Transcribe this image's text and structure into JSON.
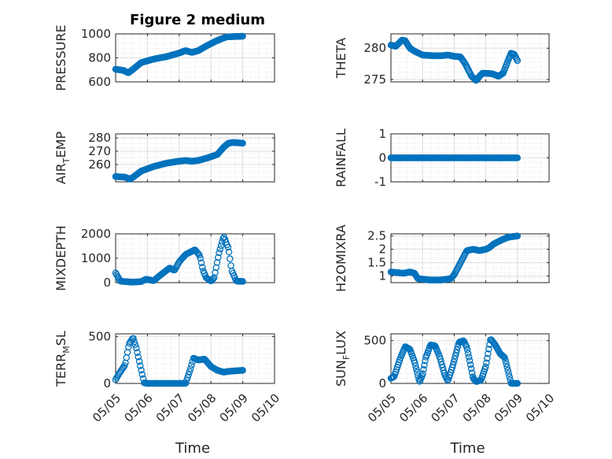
{
  "figure": {
    "title": "Figure 2 medium"
  },
  "colors": {
    "marker": "#0072BD",
    "axis": "#262626",
    "grid": "#DFDFDF"
  },
  "chart_data": [
    {
      "type": "scatter",
      "title": "Figure 2 medium",
      "ylabel": "PRESSURE",
      "ylim": [
        600,
        1000
      ],
      "yticks": [
        600,
        800,
        1000
      ],
      "ytick_labels": [
        "600",
        "800",
        "1000"
      ],
      "xlim": [
        0,
        5
      ],
      "xticks": [
        0,
        1,
        2,
        3,
        4,
        5
      ],
      "xtick_labels": [],
      "xlabel": "",
      "grid": true,
      "x_domain": [
        0,
        4
      ],
      "n_points": 160,
      "y": [
        [
          0,
          705
        ],
        [
          0.25,
          695
        ],
        [
          0.4,
          675
        ],
        [
          0.55,
          705
        ],
        [
          0.8,
          760
        ],
        [
          1.2,
          790
        ],
        [
          1.6,
          810
        ],
        [
          2.0,
          840
        ],
        [
          2.2,
          860
        ],
        [
          2.4,
          845
        ],
        [
          2.6,
          860
        ],
        [
          2.9,
          905
        ],
        [
          3.2,
          945
        ],
        [
          3.5,
          975
        ],
        [
          4.0,
          980
        ]
      ]
    },
    {
      "type": "scatter",
      "title": "",
      "ylabel": "THETA",
      "ylim": [
        274.6,
        282.3
      ],
      "yticks": [
        275,
        280
      ],
      "ytick_labels": [
        "275",
        "280"
      ],
      "xlim": [
        0,
        5
      ],
      "xticks": [
        0,
        1,
        2,
        3,
        4,
        5
      ],
      "xtick_labels": [],
      "xlabel": "",
      "grid": true,
      "x_domain": [
        0,
        4
      ],
      "n_points": 160,
      "y": [
        [
          0,
          280.5
        ],
        [
          0.15,
          280.3
        ],
        [
          0.35,
          281.3
        ],
        [
          0.45,
          281.2
        ],
        [
          0.6,
          280.0
        ],
        [
          0.75,
          279.5
        ],
        [
          1.0,
          278.9
        ],
        [
          1.3,
          278.8
        ],
        [
          1.6,
          278.8
        ],
        [
          1.8,
          278.9
        ],
        [
          2.0,
          278.7
        ],
        [
          2.2,
          278.6
        ],
        [
          2.35,
          277.5
        ],
        [
          2.55,
          275.5
        ],
        [
          2.7,
          274.8
        ],
        [
          2.8,
          275.5
        ],
        [
          2.9,
          276.0
        ],
        [
          3.2,
          275.9
        ],
        [
          3.4,
          275.5
        ],
        [
          3.55,
          276.0
        ],
        [
          3.7,
          278.0
        ],
        [
          3.8,
          279.2
        ],
        [
          3.9,
          279.0
        ],
        [
          4.0,
          278.0
        ]
      ]
    },
    {
      "type": "scatter",
      "title": "",
      "ylabel": "AIR_TEMP",
      "ylabel_main": "AIR",
      "ylabel_sub": "T",
      "ylabel_rest": "EMP",
      "ylim": [
        247,
        283
      ],
      "yticks": [
        260,
        270,
        280
      ],
      "ytick_labels": [
        "260",
        "270",
        "280"
      ],
      "xlim": [
        0,
        5
      ],
      "xticks": [
        0,
        1,
        2,
        3,
        4,
        5
      ],
      "xtick_labels": [],
      "xlabel": "",
      "grid": true,
      "x_domain": [
        0,
        4
      ],
      "n_points": 160,
      "y": [
        [
          0,
          251
        ],
        [
          0.3,
          250.5
        ],
        [
          0.45,
          249
        ],
        [
          0.55,
          250.5
        ],
        [
          0.8,
          255
        ],
        [
          1.2,
          258.5
        ],
        [
          1.6,
          261
        ],
        [
          2.0,
          262.5
        ],
        [
          2.2,
          263
        ],
        [
          2.4,
          262.5
        ],
        [
          2.6,
          263
        ],
        [
          2.9,
          265
        ],
        [
          3.2,
          267.5
        ],
        [
          3.4,
          273
        ],
        [
          3.55,
          276
        ],
        [
          3.7,
          276.5
        ],
        [
          4.0,
          276
        ]
      ]
    },
    {
      "type": "scatter",
      "title": "",
      "ylabel": "RAINFALL",
      "ylim": [
        -1,
        1
      ],
      "yticks": [
        -1,
        0,
        1
      ],
      "ytick_labels": [
        "-1",
        "0",
        "1"
      ],
      "xlim": [
        0,
        5
      ],
      "xticks": [
        0,
        1,
        2,
        3,
        4,
        5
      ],
      "xtick_labels": [],
      "xlabel": "",
      "grid": true,
      "x_domain": [
        0,
        4
      ],
      "n_points": 160,
      "y": [
        [
          0,
          0
        ],
        [
          4,
          0
        ]
      ]
    },
    {
      "type": "scatter",
      "title": "",
      "ylabel": "MIXDEPTH",
      "ylim": [
        0,
        2000
      ],
      "yticks": [
        0,
        1000,
        2000
      ],
      "ytick_labels": [
        "0",
        "1000",
        "2000"
      ],
      "xlim": [
        0,
        5
      ],
      "xticks": [
        0,
        1,
        2,
        3,
        4,
        5
      ],
      "xtick_labels": [],
      "xlabel": "",
      "grid": true,
      "x_domain": [
        0,
        4
      ],
      "n_points": 130,
      "y": [
        [
          0,
          400
        ],
        [
          0.15,
          60
        ],
        [
          0.5,
          20
        ],
        [
          0.8,
          40
        ],
        [
          0.95,
          140
        ],
        [
          1.2,
          80
        ],
        [
          1.4,
          300
        ],
        [
          1.7,
          600
        ],
        [
          1.85,
          500
        ],
        [
          2.0,
          850
        ],
        [
          2.2,
          1150
        ],
        [
          2.5,
          1350
        ],
        [
          2.65,
          1100
        ],
        [
          2.75,
          500
        ],
        [
          2.85,
          200
        ],
        [
          3.0,
          60
        ],
        [
          3.1,
          200
        ],
        [
          3.25,
          1200
        ],
        [
          3.4,
          1900
        ],
        [
          3.55,
          1400
        ],
        [
          3.65,
          500
        ],
        [
          3.8,
          60
        ],
        [
          4.0,
          50
        ]
      ]
    },
    {
      "type": "scatter",
      "title": "",
      "ylabel": "H2OMIXRA",
      "ylim": [
        0.75,
        2.58
      ],
      "yticks": [
        1,
        1.5,
        2,
        2.5
      ],
      "ytick_labels": [
        "1",
        "1.5",
        "2",
        "2.5"
      ],
      "xlim": [
        0,
        5
      ],
      "xticks": [
        0,
        1,
        2,
        3,
        4,
        5
      ],
      "xtick_labels": [],
      "xlabel": "",
      "grid": true,
      "x_domain": [
        0,
        4
      ],
      "n_points": 160,
      "y": [
        [
          0,
          1.15
        ],
        [
          0.4,
          1.1
        ],
        [
          0.6,
          1.15
        ],
        [
          0.75,
          1.1
        ],
        [
          0.85,
          0.9
        ],
        [
          1.2,
          0.85
        ],
        [
          1.6,
          0.85
        ],
        [
          1.9,
          0.9
        ],
        [
          2.0,
          1.05
        ],
        [
          2.2,
          1.5
        ],
        [
          2.4,
          1.95
        ],
        [
          2.6,
          2.0
        ],
        [
          2.8,
          1.95
        ],
        [
          3.0,
          2.0
        ],
        [
          3.1,
          2.05
        ],
        [
          3.25,
          2.2
        ],
        [
          3.5,
          2.35
        ],
        [
          3.7,
          2.45
        ],
        [
          4.0,
          2.5
        ]
      ]
    },
    {
      "type": "scatter",
      "title": "",
      "ylabel": "TERR_MSL",
      "ylabel_main": "TERR",
      "ylabel_sub": "M",
      "ylabel_rest": "SL",
      "ylim": [
        0,
        530
      ],
      "yticks": [
        0,
        500
      ],
      "ytick_labels": [
        "0",
        "500"
      ],
      "xlim": [
        0,
        5
      ],
      "xticks": [
        0,
        1,
        2,
        3,
        4,
        5
      ],
      "xtick_labels": [
        "05/05",
        "05/06",
        "05/07",
        "05/08",
        "05/09",
        "05/10"
      ],
      "xlabel": "Time",
      "grid": true,
      "x_domain": [
        0,
        4
      ],
      "n_points": 130,
      "y": [
        [
          0,
          40
        ],
        [
          0.1,
          100
        ],
        [
          0.3,
          200
        ],
        [
          0.42,
          420
        ],
        [
          0.55,
          490
        ],
        [
          0.65,
          380
        ],
        [
          0.8,
          150
        ],
        [
          0.9,
          5
        ],
        [
          1.0,
          0
        ],
        [
          1.5,
          0
        ],
        [
          2.0,
          0
        ],
        [
          2.2,
          0
        ],
        [
          2.35,
          150
        ],
        [
          2.45,
          270
        ],
        [
          2.6,
          250
        ],
        [
          2.8,
          260
        ],
        [
          3.0,
          180
        ],
        [
          3.2,
          140
        ],
        [
          3.4,
          120
        ],
        [
          3.6,
          130
        ],
        [
          4.0,
          140
        ]
      ]
    },
    {
      "type": "scatter",
      "title": "",
      "ylabel": "SUN_FLUX",
      "ylabel_main": "SUN",
      "ylabel_sub": "F",
      "ylabel_rest": "LUX",
      "ylim": [
        0,
        580
      ],
      "yticks": [
        0,
        500
      ],
      "ytick_labels": [
        "0",
        "500"
      ],
      "xlim": [
        0,
        5
      ],
      "xticks": [
        0,
        1,
        2,
        3,
        4,
        5
      ],
      "xtick_labels": [
        "05/05",
        "05/06",
        "05/07",
        "05/08",
        "05/09",
        "05/10"
      ],
      "xlabel": "Time",
      "grid": true,
      "x_domain": [
        0,
        4
      ],
      "n_points": 160,
      "y": [
        [
          0,
          60
        ],
        [
          0.1,
          80
        ],
        [
          0.3,
          300
        ],
        [
          0.45,
          430
        ],
        [
          0.6,
          400
        ],
        [
          0.75,
          250
        ],
        [
          0.85,
          100
        ],
        [
          0.9,
          20
        ],
        [
          1.0,
          100
        ],
        [
          1.1,
          300
        ],
        [
          1.25,
          450
        ],
        [
          1.4,
          440
        ],
        [
          1.55,
          300
        ],
        [
          1.7,
          100
        ],
        [
          1.8,
          30
        ],
        [
          1.95,
          200
        ],
        [
          2.15,
          480
        ],
        [
          2.3,
          500
        ],
        [
          2.4,
          420
        ],
        [
          2.5,
          250
        ],
        [
          2.6,
          60
        ],
        [
          2.7,
          20
        ],
        [
          2.85,
          40
        ],
        [
          3.0,
          200
        ],
        [
          3.15,
          520
        ],
        [
          3.3,
          450
        ],
        [
          3.45,
          350
        ],
        [
          3.6,
          300
        ],
        [
          3.7,
          150
        ],
        [
          3.8,
          0
        ],
        [
          4.0,
          0
        ]
      ]
    }
  ]
}
